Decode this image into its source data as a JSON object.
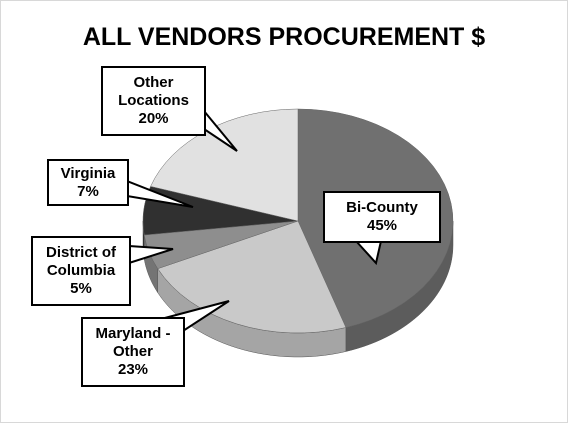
{
  "chart_data": {
    "type": "pie3d",
    "title": "ALL VENDORS PROCUREMENT $",
    "categories": [
      "Bi-County",
      "Maryland - Other",
      "District of Columbia",
      "Virginia",
      "Other Locations"
    ],
    "values": [
      45,
      23,
      5,
      7,
      20
    ],
    "value_labels": [
      "45%",
      "23%",
      "5%",
      "7%",
      "20%"
    ],
    "colors": [
      "#707070",
      "#c9c9c9",
      "#8e8e8e",
      "#303030",
      "#e1e1e1"
    ]
  }
}
